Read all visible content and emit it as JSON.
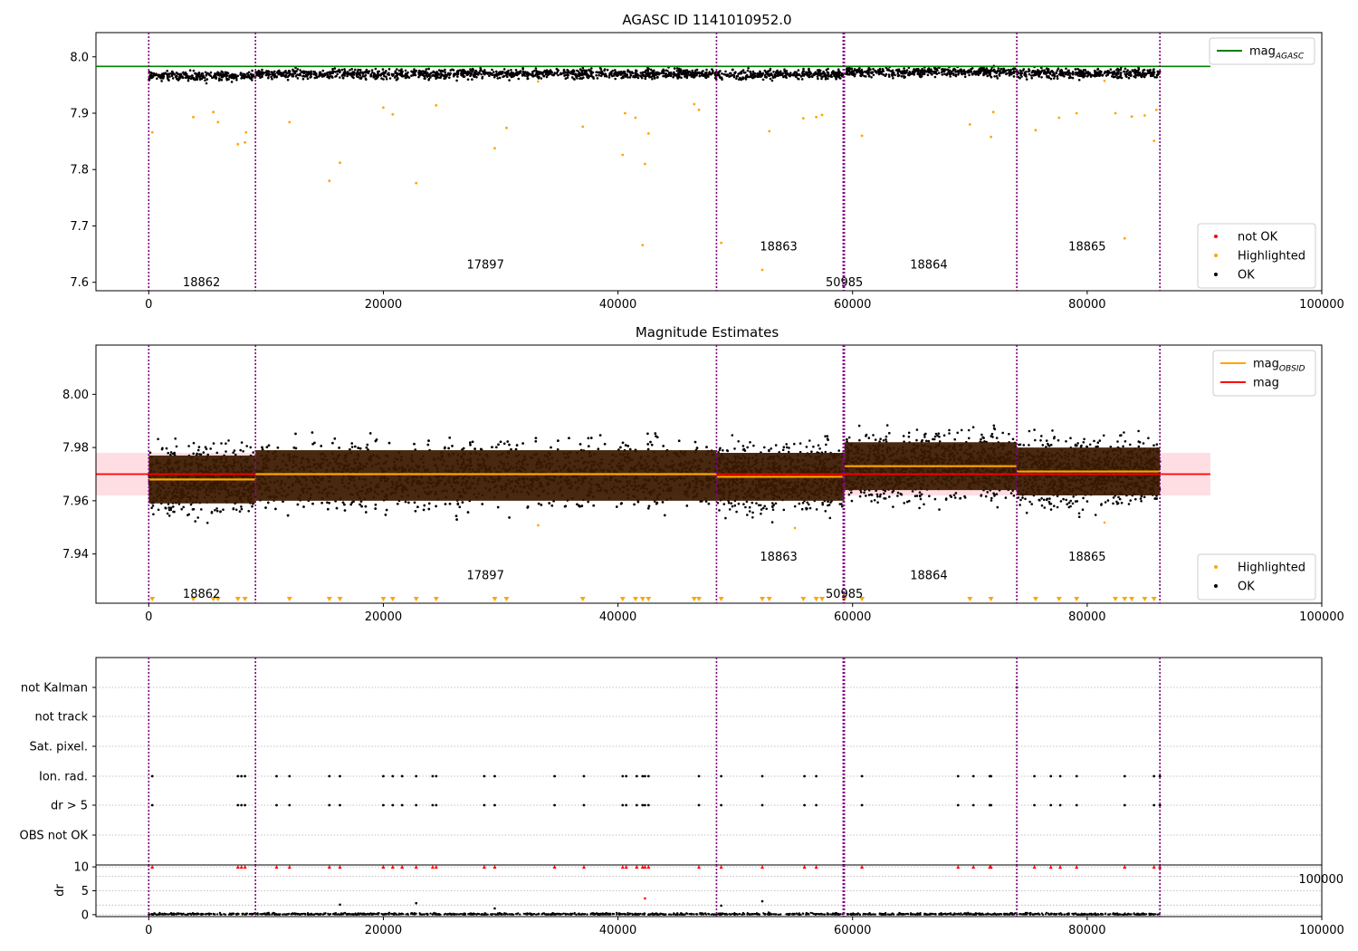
{
  "figure_title": "AGASC ID 1141010952.0",
  "colors": {
    "ok": "#000000",
    "highlighted": "#ffa500",
    "not_ok": "#ff0000",
    "mag_agasc": "#008000",
    "mag_obsid": "#ffa500",
    "mag": "#ff0000",
    "obsid_boundary": "#800080",
    "mag_band": "#ffb6c1",
    "obsid_band": "#3a1a00"
  },
  "obsid_boundaries": [
    0,
    9100,
    48400,
    59200,
    59300,
    74000,
    86200
  ],
  "chart_data": [
    {
      "type": "scatter",
      "title": "AGASC ID 1141010952.0",
      "xlim": [
        -4500,
        100000
      ],
      "ylim": [
        7.585,
        8.043
      ],
      "xticks": [
        "0",
        "20000",
        "40000",
        "60000",
        "80000",
        "100000"
      ],
      "yticks": [
        "7.6",
        "7.7",
        "7.8",
        "7.9",
        "8.0"
      ],
      "legends": [
        {
          "position": "upper-right",
          "entries": [
            {
              "label": "mag",
              "subscript": "AGASC",
              "kind": "line"
            }
          ]
        },
        {
          "position": "lower-right",
          "entries": [
            {
              "label": "not OK",
              "kind": "dot",
              "color_key": "not_ok"
            },
            {
              "label": "Highlighted",
              "kind": "dot",
              "color_key": "highlighted"
            },
            {
              "label": "OK",
              "kind": "dot",
              "color_key": "ok"
            }
          ]
        }
      ],
      "mag_agasc": 7.983,
      "obsid_labels": [
        {
          "text": "18862",
          "x": 4500,
          "y": 7.6
        },
        {
          "text": "17897",
          "x": 28700,
          "y": 7.632
        },
        {
          "text": "18863",
          "x": 53700,
          "y": 7.664
        },
        {
          "text": "50985",
          "x": 59300,
          "y": 7.6
        },
        {
          "text": "18864",
          "x": 66500,
          "y": 7.632
        },
        {
          "text": "18865",
          "x": 80000,
          "y": 7.664
        }
      ],
      "highlighted_outliers": [
        {
          "x": 300,
          "y": 7.866
        },
        {
          "x": 3800,
          "y": 7.893
        },
        {
          "x": 5500,
          "y": 7.902
        },
        {
          "x": 5900,
          "y": 7.884
        },
        {
          "x": 7600,
          "y": 7.845
        },
        {
          "x": 8200,
          "y": 7.848
        },
        {
          "x": 8300,
          "y": 7.866
        },
        {
          "x": 12000,
          "y": 7.884
        },
        {
          "x": 15400,
          "y": 7.78
        },
        {
          "x": 16300,
          "y": 7.812
        },
        {
          "x": 20000,
          "y": 7.91
        },
        {
          "x": 20800,
          "y": 7.898
        },
        {
          "x": 22800,
          "y": 7.776
        },
        {
          "x": 24500,
          "y": 7.914
        },
        {
          "x": 29500,
          "y": 7.838
        },
        {
          "x": 30500,
          "y": 7.874
        },
        {
          "x": 37000,
          "y": 7.876
        },
        {
          "x": 40400,
          "y": 7.826
        },
        {
          "x": 40600,
          "y": 7.9
        },
        {
          "x": 41500,
          "y": 7.892
        },
        {
          "x": 42100,
          "y": 7.666
        },
        {
          "x": 42300,
          "y": 7.81
        },
        {
          "x": 42600,
          "y": 7.864
        },
        {
          "x": 46500,
          "y": 7.916
        },
        {
          "x": 46900,
          "y": 7.906
        },
        {
          "x": 48800,
          "y": 7.67
        },
        {
          "x": 52300,
          "y": 7.622
        },
        {
          "x": 52900,
          "y": 7.868
        },
        {
          "x": 55800,
          "y": 7.891
        },
        {
          "x": 56900,
          "y": 7.893
        },
        {
          "x": 57400,
          "y": 7.897
        },
        {
          "x": 60800,
          "y": 7.86
        },
        {
          "x": 70000,
          "y": 7.88
        },
        {
          "x": 71800,
          "y": 7.858
        },
        {
          "x": 72000,
          "y": 7.902
        },
        {
          "x": 75600,
          "y": 7.87
        },
        {
          "x": 77600,
          "y": 7.892
        },
        {
          "x": 79100,
          "y": 7.9
        },
        {
          "x": 82400,
          "y": 7.9
        },
        {
          "x": 83200,
          "y": 7.678
        },
        {
          "x": 83800,
          "y": 7.894
        },
        {
          "x": 84900,
          "y": 7.896
        },
        {
          "x": 85700,
          "y": 7.851
        },
        {
          "x": 85900,
          "y": 7.906
        }
      ]
    },
    {
      "type": "scatter",
      "title": "Magnitude Estimates",
      "xlim": [
        -4500,
        100000
      ],
      "ylim": [
        7.9215,
        8.0185
      ],
      "xticks": [
        "0",
        "20000",
        "40000",
        "60000",
        "80000",
        "100000"
      ],
      "yticks": [
        "7.94",
        "7.96",
        "7.98",
        "8.00"
      ],
      "legends": [
        {
          "position": "upper-right",
          "entries": [
            {
              "label": "mag",
              "subscript": "OBSID",
              "kind": "line",
              "color_key": "mag_obsid"
            },
            {
              "label": "mag",
              "kind": "line",
              "color_key": "mag"
            }
          ]
        },
        {
          "position": "lower-right",
          "entries": [
            {
              "label": "Highlighted",
              "kind": "dot",
              "color_key": "highlighted"
            },
            {
              "label": "OK",
              "kind": "dot",
              "color_key": "ok"
            }
          ]
        }
      ],
      "mag": 7.97,
      "mag_band": [
        7.962,
        7.978
      ],
      "mag_band_xlim": [
        -4500,
        90500
      ],
      "obsid_segments": [
        {
          "x0": 0,
          "x1": 9100,
          "mag": 7.968,
          "low": 7.959,
          "high": 7.977
        },
        {
          "x0": 9100,
          "x1": 48400,
          "mag": 7.97,
          "low": 7.96,
          "high": 7.979
        },
        {
          "x0": 48400,
          "x1": 59300,
          "mag": 7.969,
          "low": 7.96,
          "high": 7.978
        },
        {
          "x0": 59300,
          "x1": 74000,
          "mag": 7.973,
          "low": 7.964,
          "high": 7.982
        },
        {
          "x0": 74000,
          "x1": 86200,
          "mag": 7.971,
          "low": 7.962,
          "high": 7.98
        }
      ],
      "obsid_labels": [
        {
          "text": "18862",
          "x": 4500,
          "y": 7.925
        },
        {
          "text": "17897",
          "x": 28700,
          "y": 7.932
        },
        {
          "text": "18863",
          "x": 53700,
          "y": 7.939
        },
        {
          "text": "50985",
          "x": 59300,
          "y": 7.925
        },
        {
          "text": "18864",
          "x": 66500,
          "y": 7.932
        },
        {
          "text": "18865",
          "x": 80000,
          "y": 7.939
        }
      ],
      "below_axis_markers": [
        300,
        3800,
        5500,
        5900,
        7600,
        8200,
        12000,
        15400,
        16300,
        20000,
        20800,
        22800,
        24500,
        29500,
        30500,
        37000,
        40400,
        41500,
        42100,
        42600,
        46500,
        46900,
        48800,
        52300,
        52900,
        55800,
        56900,
        57400,
        59300,
        60800,
        70000,
        71800,
        75600,
        77600,
        79100,
        82400,
        83200,
        83800,
        84900,
        85700
      ]
    },
    {
      "type": "scatter",
      "title": "",
      "xlim": [
        -4500,
        100000
      ],
      "xticks": [
        "0",
        "20000",
        "40000",
        "60000",
        "80000",
        "100000"
      ],
      "categories": [
        "not Kalman",
        "not track",
        "Sat. pixel.",
        "Ion. rad.",
        "dr > 5",
        "OBS not OK"
      ],
      "flag_rows": [
        {
          "category": "not Kalman",
          "x": [
            74000
          ]
        },
        {
          "category": "not track",
          "x": []
        },
        {
          "category": "Sat. pixel.",
          "x": []
        },
        {
          "category": "Ion. rad.",
          "x": [
            300,
            7600,
            7900,
            8200,
            10900,
            12000,
            15400,
            16300,
            20000,
            20800,
            21600,
            22800,
            24200,
            24500,
            28600,
            29500,
            34600,
            37100,
            40400,
            40700,
            41600,
            42100,
            42300,
            42600,
            46900,
            48800,
            52300,
            55900,
            56900,
            60800,
            69000,
            70300,
            71700,
            71800,
            75500,
            76900,
            77700,
            79100,
            83200,
            85700,
            86200
          ]
        },
        {
          "category": "dr > 5",
          "x": [
            300,
            7600,
            7900,
            8200,
            10900,
            12000,
            15400,
            16300,
            20000,
            20800,
            21600,
            22800,
            24200,
            24500,
            28600,
            29500,
            34600,
            37100,
            40400,
            40700,
            41600,
            42100,
            42300,
            42600,
            46900,
            48800,
            52300,
            55900,
            56900,
            60800,
            69000,
            70300,
            71700,
            71800,
            75500,
            76900,
            77700,
            79100,
            83200,
            85700,
            86200
          ]
        },
        {
          "category": "OBS not OK",
          "x": []
        }
      ]
    },
    {
      "type": "scatter",
      "title": "",
      "xlim": [
        -4500,
        100000
      ],
      "ylim": [
        -0.4,
        10.4
      ],
      "ylabel": "dr",
      "xticks": [
        "0",
        "20000",
        "40000",
        "60000",
        "80000",
        "100000"
      ],
      "yticks": [
        "0",
        "5",
        "10"
      ],
      "overflow_tick_text": "100000",
      "clipped_at_10": [
        300,
        7600,
        7900,
        8200,
        10900,
        12000,
        15400,
        16300,
        20000,
        20800,
        21600,
        22800,
        24200,
        24500,
        28600,
        29500,
        34600,
        37100,
        40400,
        40700,
        41600,
        42100,
        42300,
        42600,
        46900,
        48800,
        52300,
        55900,
        56900,
        60800,
        69000,
        70300,
        71700,
        71800,
        75500,
        76900,
        77700,
        79100,
        83200,
        85700,
        86200
      ],
      "isolated_points": [
        {
          "x": 16300,
          "y": 2.1
        },
        {
          "x": 22800,
          "y": 2.4
        },
        {
          "x": 42300,
          "y": 3.4,
          "not_ok": true
        },
        {
          "x": 48800,
          "y": 1.9
        },
        {
          "x": 52300,
          "y": 2.8
        },
        {
          "x": 29500,
          "y": 1.3
        }
      ]
    }
  ]
}
